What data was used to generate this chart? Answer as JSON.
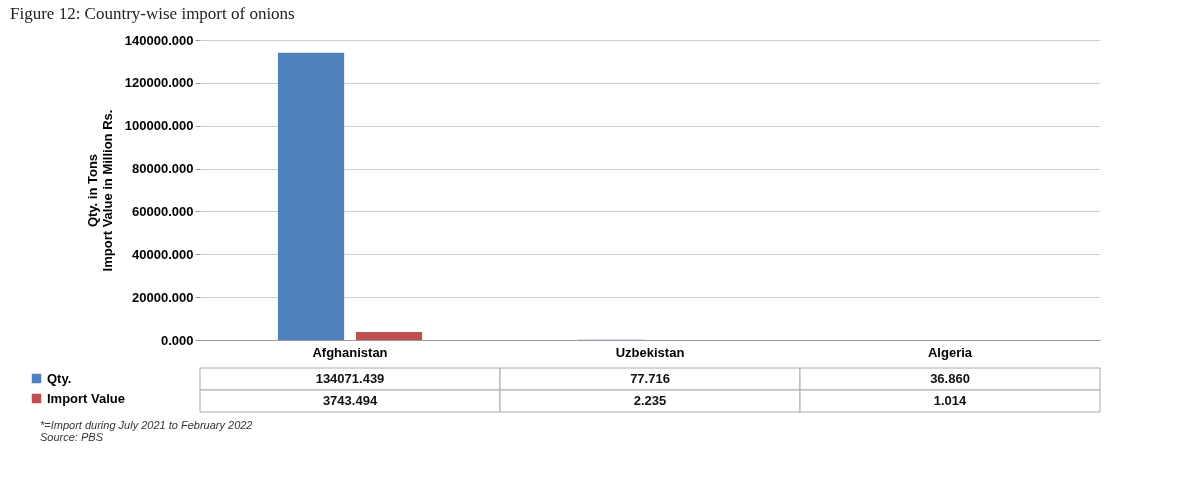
{
  "chart_data": {
    "type": "bar",
    "title": "Figure 12: Country-wise import of onions",
    "ylabel": "Qty. in Tons\nImport Value in Million Rs.",
    "categories": [
      "Afghanistan",
      "Uzbekistan",
      "Algeria"
    ],
    "series": [
      {
        "name": "Qty.",
        "color": "#4f81bd",
        "values": [
          134071.439,
          77.716,
          36.86
        ],
        "value_labels": [
          "134071.439",
          "77.716",
          "36.860"
        ]
      },
      {
        "name": "Import Value",
        "color": "#c0504d",
        "values": [
          3743.494,
          2.235,
          1.014
        ],
        "value_labels": [
          "3743.494",
          "2.235",
          "1.014"
        ]
      }
    ],
    "ylim": [
      0,
      140000
    ],
    "yticks": [
      {
        "value": 0,
        "label": "0.000"
      },
      {
        "value": 20000,
        "label": "20000.000"
      },
      {
        "value": 40000,
        "label": "40000.000"
      },
      {
        "value": 60000,
        "label": "60000.000"
      },
      {
        "value": 80000,
        "label": "80000.000"
      },
      {
        "value": 100000,
        "label": "100000.000"
      },
      {
        "value": 120000,
        "label": "120000.000"
      },
      {
        "value": 140000,
        "label": "140000.000"
      }
    ],
    "grid": "y",
    "legend": "bottom left",
    "annotations": [
      "*=Import during July 2021 to February 2022",
      "Source: PBS"
    ]
  }
}
